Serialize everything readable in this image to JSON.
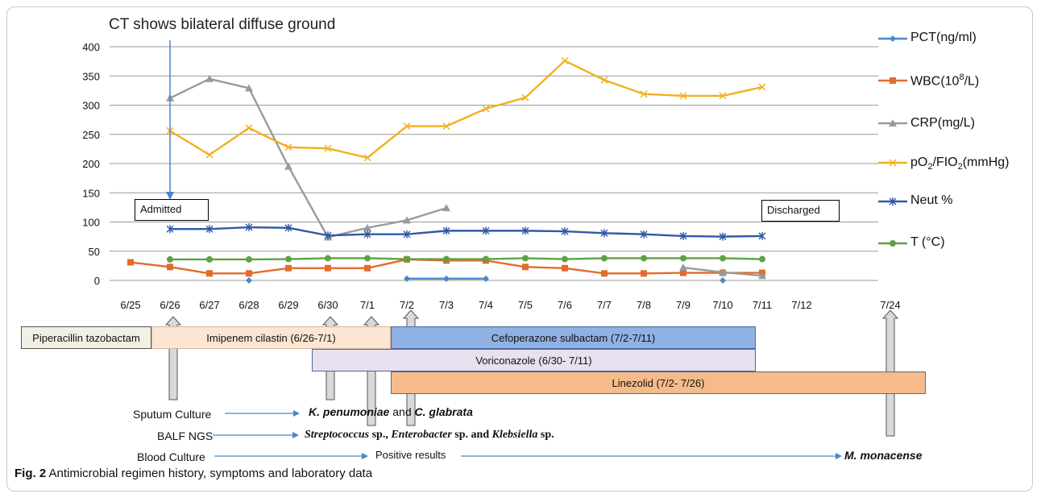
{
  "annotation_top": "CT shows bilateral  diffuse ground",
  "chart_data": {
    "type": "line",
    "categories": [
      "6/25",
      "6/26",
      "6/27",
      "6/28",
      "6/29",
      "6/30",
      "7/1",
      "7/2",
      "7/3",
      "7/4",
      "7/5",
      "7/6",
      "7/7",
      "7/8",
      "7/9",
      "7/10",
      "7/11",
      "7/12",
      "7/24"
    ],
    "ylim": [
      0,
      400
    ],
    "yticks": [
      0,
      50,
      100,
      150,
      200,
      250,
      300,
      350,
      400
    ],
    "grid": true,
    "legend_position": "right",
    "series": [
      {
        "key": "pct",
        "name": "PCT(ng/ml)",
        "color": "#4a86c8",
        "marker": "diamond",
        "segments": [
          [
            [
              3,
              0
            ]
          ],
          [
            [
              7,
              3
            ],
            [
              8,
              3
            ],
            [
              9,
              3
            ]
          ],
          [
            [
              15,
              0
            ]
          ]
        ]
      },
      {
        "key": "wbc",
        "name": "WBC(10^8/L)",
        "color": "#e36b2c",
        "marker": "square",
        "segments": [
          [
            [
              0,
              31
            ],
            [
              1,
              23
            ],
            [
              2,
              12
            ],
            [
              3,
              12
            ],
            [
              4,
              21
            ],
            [
              5,
              21
            ],
            [
              6,
              21
            ],
            [
              7,
              36
            ],
            [
              8,
              34
            ],
            [
              9,
              34
            ],
            [
              10,
              23
            ],
            [
              11,
              21
            ],
            [
              12,
              12
            ],
            [
              13,
              12
            ],
            [
              14,
              13
            ],
            [
              15,
              13
            ],
            [
              16,
              13
            ]
          ]
        ]
      },
      {
        "key": "crp",
        "name": "CRP(mg/L)",
        "color": "#9a9a9a",
        "marker": "triangle",
        "segments": [
          [
            [
              1,
              312
            ],
            [
              2,
              345
            ],
            [
              3,
              329
            ],
            [
              4,
              195
            ],
            [
              5,
              74
            ],
            [
              6,
              90
            ],
            [
              7,
              103
            ],
            [
              8,
              124
            ]
          ],
          [
            [
              14,
              22
            ],
            [
              15,
              14
            ],
            [
              16,
              8
            ]
          ]
        ]
      },
      {
        "key": "pf",
        "name": "pO2/FIO2(mmHg)",
        "color": "#f2b01e",
        "marker": "x",
        "segments": [
          [
            [
              1,
              256
            ],
            [
              2,
              215
            ],
            [
              3,
              261
            ],
            [
              4,
              228
            ],
            [
              5,
              226
            ],
            [
              6,
              210
            ],
            [
              7,
              264
            ],
            [
              8,
              264
            ],
            [
              9,
              294
            ],
            [
              10,
              313
            ],
            [
              11,
              376
            ],
            [
              12,
              343
            ],
            [
              13,
              319
            ],
            [
              14,
              316
            ],
            [
              15,
              316
            ],
            [
              16,
              331
            ]
          ]
        ]
      },
      {
        "key": "neut",
        "name": "Neut %",
        "color": "#2f5aa8",
        "marker": "asterisk",
        "segments": [
          [
            [
              1,
              88
            ],
            [
              2,
              88
            ],
            [
              3,
              91
            ],
            [
              4,
              90
            ],
            [
              5,
              77
            ],
            [
              6,
              79
            ],
            [
              7,
              79
            ],
            [
              8,
              85
            ],
            [
              9,
              85
            ],
            [
              10,
              85
            ],
            [
              11,
              84
            ],
            [
              12,
              81
            ],
            [
              13,
              79
            ],
            [
              14,
              76
            ],
            [
              15,
              75
            ],
            [
              16,
              76
            ]
          ]
        ]
      },
      {
        "key": "temp",
        "name": "T (°C)",
        "color": "#5ea244",
        "marker": "circle",
        "segments": [
          [
            [
              1,
              36
            ],
            [
              2,
              36
            ],
            [
              3,
              36
            ],
            [
              4,
              36.5
            ],
            [
              5,
              38
            ],
            [
              6,
              38
            ],
            [
              7,
              36.5
            ],
            [
              8,
              36.5
            ],
            [
              9,
              36.5
            ],
            [
              10,
              38
            ],
            [
              11,
              36.5
            ],
            [
              12,
              38
            ],
            [
              13,
              38
            ],
            [
              14,
              38
            ],
            [
              15,
              38
            ],
            [
              16,
              36.5
            ]
          ]
        ]
      }
    ]
  },
  "legend": {
    "pct": "PCT(ng/ml)",
    "wbc_pre": "WBC(10",
    "wbc_sup": "8",
    "wbc_post": "/L)",
    "crp": "CRP(mg/L)",
    "pf_a": "pO",
    "pf_sub1": "2",
    "pf_b": "/FIO",
    "pf_sub2": "2",
    "pf_c": "(mmHg)",
    "neut": "Neut %",
    "temp": "T (°C)"
  },
  "boxes": {
    "admitted": "Admitted",
    "discharged": "Discharged"
  },
  "regimen": {
    "pip": "Piperacillin tazobactam",
    "imi": "Imipenem cilastin (6/26-7/1)",
    "cef": "Cefoperazone sulbactam (7/2-7/11)",
    "vor": "Voriconazole (6/30- 7/11)",
    "lin": "Linezolid (7/2- 7/26)"
  },
  "tests": {
    "sputum_label": "Sputum Culture",
    "sputum_result_1": "K. penumoniae",
    "sputum_result_and": " and ",
    "sputum_result_2": "C. glabrata",
    "balf_label": "BALF NGS",
    "balf_result_1": "Streptococcus",
    "balf_result_sp1": " sp., ",
    "balf_result_2": "Enterobacter",
    "balf_result_sp2": " sp. and ",
    "balf_result_3": "Klebsiella",
    "balf_result_sp3": " sp.",
    "blood_label": "Blood Culture",
    "blood_mid": "Positive results",
    "blood_result": "M. monacense"
  },
  "caption": {
    "fig": "Fig. 2",
    "text": " Antimicrobial regimen history, symptoms and laboratory data"
  }
}
